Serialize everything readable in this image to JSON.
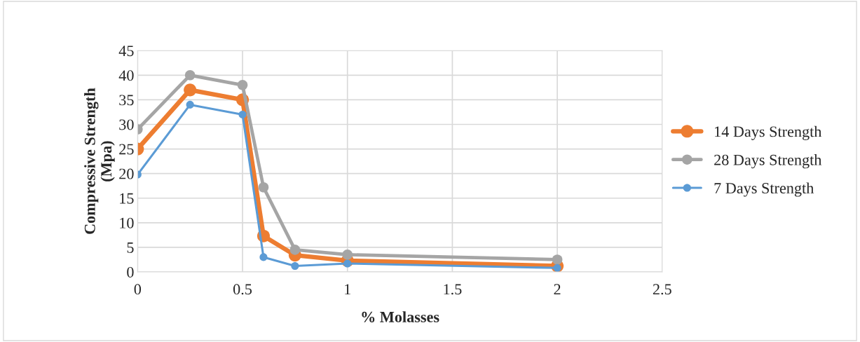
{
  "chart_data": {
    "type": "line",
    "xlabel": "% Molasses",
    "ylabel": "Compressive Strength\n(Mpa)",
    "x": [
      0,
      0.25,
      0.5,
      0.6,
      0.75,
      1,
      2
    ],
    "xlim": [
      0,
      2.5
    ],
    "xticks": [
      0,
      0.5,
      1,
      1.5,
      2,
      2.5
    ],
    "ylim": [
      0,
      45
    ],
    "yticks": [
      0,
      5,
      10,
      15,
      20,
      25,
      30,
      35,
      40,
      45
    ],
    "grid": true,
    "legend": "right",
    "marker": "circle",
    "line_style": "solid",
    "series": [
      {
        "name": "14 Days Strength",
        "color": "#ed7d31",
        "values": [
          25,
          37,
          35,
          7.3,
          3.4,
          2.3,
          1.2
        ]
      },
      {
        "name": "28 Days Strength",
        "color": "#a5a5a5",
        "values": [
          29,
          40,
          38,
          17.2,
          4.5,
          3.5,
          2.5
        ]
      },
      {
        "name": "7 Days Strength",
        "color": "#5b9bd5",
        "values": [
          19.8,
          34,
          32,
          3,
          1.2,
          1.7,
          0.8
        ]
      }
    ]
  }
}
